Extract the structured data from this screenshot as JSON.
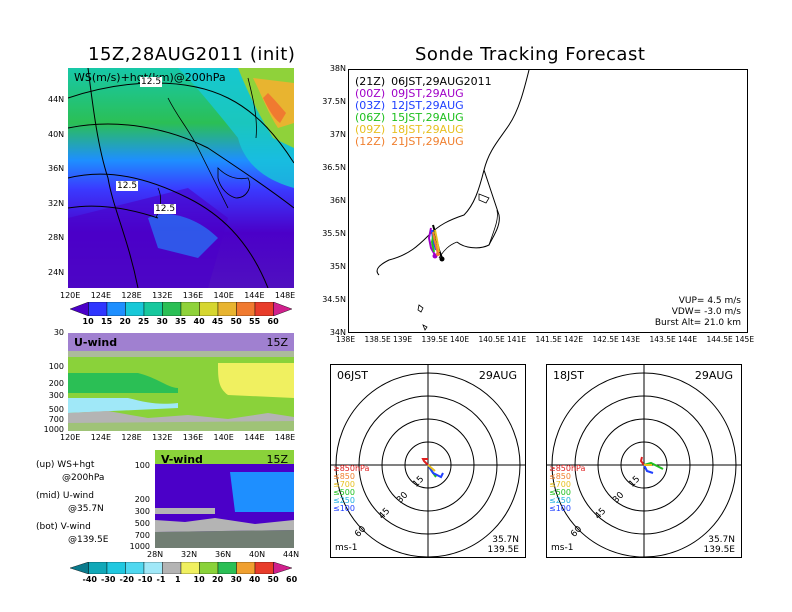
{
  "left": {
    "title": "15Z,28AUG2011 (init)",
    "map_label": "WS(m/s)+hgt(km)@200hPa",
    "contour_labels": [
      "12.5",
      "12.5",
      "12.5"
    ],
    "map_lat_ticks": [
      "44N",
      "40N",
      "36N",
      "32N",
      "28N",
      "24N"
    ],
    "map_lon_ticks": [
      "120E",
      "124E",
      "128E",
      "132E",
      "136E",
      "140E",
      "144E",
      "148E"
    ],
    "ws_colorbar_values": [
      "10",
      "15",
      "20",
      "25",
      "30",
      "35",
      "40",
      "45",
      "50",
      "55",
      "60"
    ],
    "ws_colorbar_colors": [
      "#4b00c8",
      "#2f36ff",
      "#1e8fff",
      "#17c8d8",
      "#17c89e",
      "#2bbf55",
      "#8fd23a",
      "#d6d630",
      "#e8b430",
      "#f07a30",
      "#e83c2a",
      "#d0208c"
    ],
    "u_label": "U-wind",
    "u_time": "15Z",
    "u_pressure_ticks": [
      "30",
      "100",
      "200",
      "300",
      "500",
      "700",
      "1000"
    ],
    "u_lon_ticks": [
      "120E",
      "124E",
      "128E",
      "132E",
      "136E",
      "140E",
      "144E",
      "148E"
    ],
    "v_label": "V-wind",
    "v_time": "15Z",
    "v_pressure_ticks": [
      "100",
      "200",
      "300",
      "500",
      "700",
      "1000"
    ],
    "v_lat_ticks": [
      "28N",
      "32N",
      "36N",
      "40N",
      "44N"
    ],
    "notes": [
      {
        "a": "(up) WS+hgt",
        "b": "@200hPa"
      },
      {
        "a": "(mid) U-wind",
        "b": "@35.7N"
      },
      {
        "a": "(bot) V-wind",
        "b": "@139.5E"
      }
    ],
    "uv_colorbar_values": [
      "-40",
      "-30",
      "-20",
      "-10",
      "-1",
      "1",
      "10",
      "20",
      "30",
      "40",
      "50",
      "60"
    ],
    "uv_colorbar_colors": [
      "#0a7a8c",
      "#10a8b8",
      "#20c8e0",
      "#50d8f0",
      "#a0e8f8",
      "#b4b4b4",
      "#f0f060",
      "#8ad23a",
      "#2bbf55",
      "#f0a030",
      "#e83c2a",
      "#d0208c"
    ]
  },
  "track": {
    "title": "Sonde Tracking Forecast",
    "legend": [
      {
        "code": "(21Z)",
        "label": "06JST,29AUG2011",
        "color": "#000000"
      },
      {
        "code": "(00Z)",
        "label": "09JST,29AUG",
        "color": "#a000c8"
      },
      {
        "code": "(03Z)",
        "label": "12JST,29AUG",
        "color": "#2040ff"
      },
      {
        "code": "(06Z)",
        "label": "15JST,29AUG",
        "color": "#20c020"
      },
      {
        "code": "(09Z)",
        "label": "18JST,29AUG",
        "color": "#e8c020"
      },
      {
        "code": "(12Z)",
        "label": "21JST,29AUG",
        "color": "#f08030"
      }
    ],
    "lat_ticks": [
      "38N",
      "37.5N",
      "37N",
      "36.5N",
      "36N",
      "35.5N",
      "35N",
      "34.5N",
      "34N"
    ],
    "lon_ticks": [
      "138E",
      "138.5E",
      "139E",
      "139.5E",
      "140E",
      "140.5E",
      "141E",
      "141.5E",
      "142E",
      "142.5E",
      "143E",
      "143.5E",
      "144E",
      "144.5E",
      "145E"
    ],
    "vup": "VUP= 4.5 m/s",
    "vdw": "VDW= -3.0 m/s",
    "burst": "Burst Alt= 21.0 km"
  },
  "hodographs": [
    {
      "time": "06JST",
      "date": "29AUG",
      "rings": [
        "15",
        "30",
        "45",
        "60"
      ],
      "unit": "ms-1",
      "loc_lat": "35.7N",
      "loc_lon": "139.5E",
      "levels": [
        {
          "t": "≥850hPa",
          "c": "#e02020"
        },
        {
          "t": "≤850",
          "c": "#f08030"
        },
        {
          "t": "≤700",
          "c": "#e8c020"
        },
        {
          "t": "≤500",
          "c": "#20c020"
        },
        {
          "t": "≤250",
          "c": "#20b0e0"
        },
        {
          "t": "≤100",
          "c": "#2040ff"
        }
      ]
    },
    {
      "time": "18JST",
      "date": "29AUG",
      "rings": [
        "15",
        "30",
        "45",
        "60"
      ],
      "unit": "ms-1",
      "loc_lat": "35.7N",
      "loc_lon": "139.5E",
      "levels": [
        {
          "t": "≥850hPa",
          "c": "#e02020"
        },
        {
          "t": "≤850",
          "c": "#f08030"
        },
        {
          "t": "≤700",
          "c": "#e8c020"
        },
        {
          "t": "≤500",
          "c": "#20c020"
        },
        {
          "t": "≤250",
          "c": "#20b0e0"
        },
        {
          "t": "≤100",
          "c": "#2040ff"
        }
      ]
    }
  ]
}
